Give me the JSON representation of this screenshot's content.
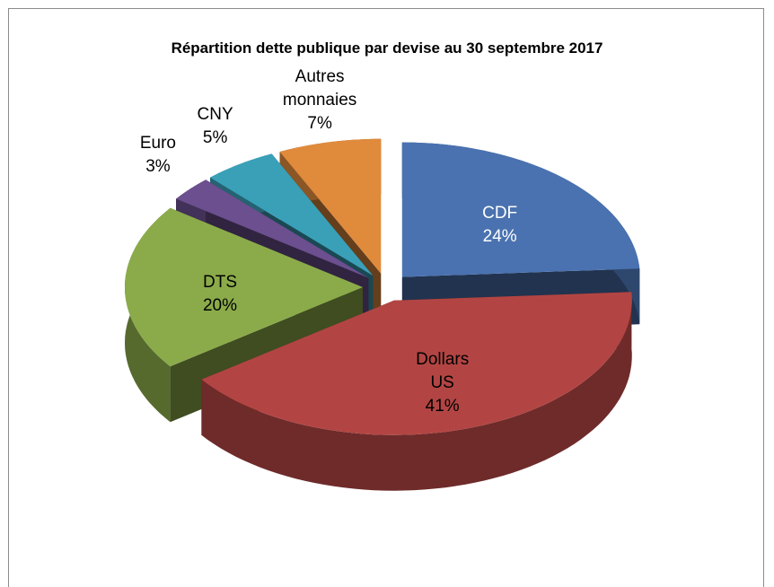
{
  "chart_data": {
    "type": "pie3d",
    "title": "Répartition dette publique par devise au 30 septembre 2017",
    "categories": [
      "CDF",
      "Dollars US",
      "DTS",
      "Euro",
      "CNY",
      "Autres monnaies"
    ],
    "values": [
      24,
      41,
      20,
      3,
      5,
      7
    ],
    "value_labels": [
      "24%",
      "41%",
      "20%",
      "3%",
      "5%",
      "7%"
    ],
    "colors": [
      "#4a72b0",
      "#b24543",
      "#8bab4a",
      "#6b4f8e",
      "#3aa0b8",
      "#e08a3c"
    ]
  }
}
